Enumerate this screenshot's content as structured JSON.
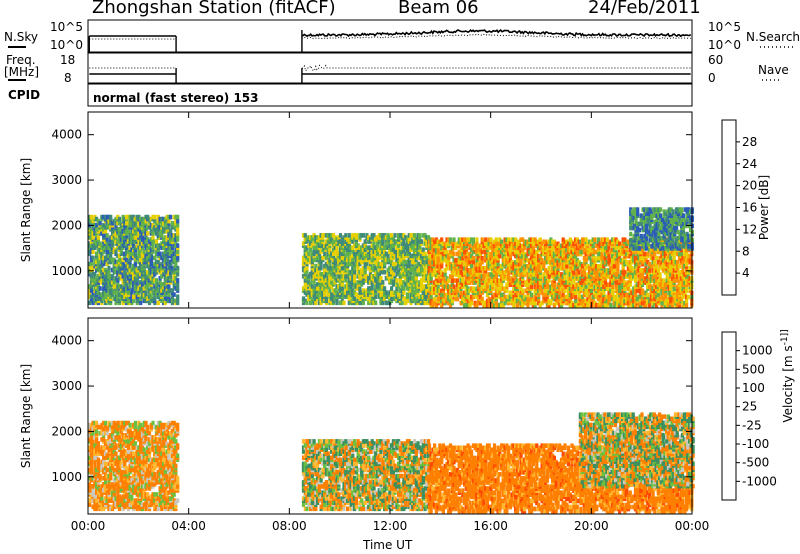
{
  "header": {
    "station": "Zhongshan Station (fitACF)",
    "beam": "Beam 06",
    "date": "24/Feb/2011"
  },
  "top_panels": {
    "nsky_label": "N.Sky",
    "nsearch_label": "N.Search",
    "noise_ticks": [
      "10^5",
      "10^0"
    ],
    "noise_ticks_right": [
      "10^5",
      "10^0"
    ],
    "freq_label": "Freq.",
    "freq_unit": "[MHz]",
    "freq_ticks": [
      "18",
      "8"
    ],
    "nave_label": "Nave",
    "nave_ticks": [
      "60",
      "0"
    ],
    "cpid_label": "CPID",
    "cpid_text": "normal (fast stereo) 153"
  },
  "chart_data": [
    {
      "type": "heatmap",
      "name": "power",
      "ylabel": "Slant Range [km]",
      "xlabel": "",
      "xlim": [
        0,
        24
      ],
      "ylim": [
        180,
        4500
      ],
      "y_ticks": [
        "1000",
        "2000",
        "3000",
        "4000"
      ],
      "x_tick_labels": [
        "00:00",
        "04:00",
        "08:00",
        "12:00",
        "16:00",
        "20:00",
        "00:00"
      ],
      "colorbar": {
        "label": "Power [dB]",
        "ticks": [
          "4",
          "8",
          "12",
          "16",
          "20",
          "24",
          "28"
        ],
        "colors": [
          "#0000ff",
          "#2a5cb8",
          "#3f8a78",
          "#62b24c",
          "#e8d000",
          "#ff9000",
          "#ff5000",
          "#ff0000"
        ]
      },
      "data_gap_hours": [
        3.5,
        8.5
      ],
      "regions": [
        {
          "t": [
            0,
            3.5
          ],
          "r": [
            300,
            2200
          ],
          "level": 12
        },
        {
          "t": [
            8.5,
            13.5
          ],
          "r": [
            300,
            1800
          ],
          "level": 14
        },
        {
          "t": [
            13.5,
            24
          ],
          "r": [
            250,
            1700
          ],
          "level": 20
        },
        {
          "t": [
            21.5,
            24
          ],
          "r": [
            1500,
            2400
          ],
          "level": 10
        }
      ]
    },
    {
      "type": "heatmap",
      "name": "velocity",
      "ylabel": "Slant Range [km]",
      "xlabel": "Time UT",
      "xlim": [
        0,
        24
      ],
      "ylim": [
        180,
        4500
      ],
      "y_ticks": [
        "1000",
        "2000",
        "3000",
        "4000"
      ],
      "x_tick_labels": [
        "00:00",
        "04:00",
        "08:00",
        "12:00",
        "16:00",
        "20:00",
        "00:00"
      ],
      "colorbar": {
        "label": "Velocity [m s^-1]",
        "ticks": [
          "1000",
          "500",
          "100",
          "25",
          "-25",
          "-100",
          "-500",
          "-1000"
        ],
        "colors": [
          "#1a1aff",
          "#2a66c0",
          "#3a9060",
          "#6cc040",
          "#c8c8c0",
          "#ffb830",
          "#ff8000",
          "#ff4800",
          "#ff0000"
        ]
      },
      "data_gap_hours": [
        3.5,
        8.5
      ],
      "regions": [
        {
          "t": [
            0,
            3.5
          ],
          "r": [
            300,
            2200
          ],
          "velocity": -150
        },
        {
          "t": [
            8.5,
            13.5
          ],
          "r": [
            300,
            1800
          ],
          "velocity": 0
        },
        {
          "t": [
            13.5,
            24
          ],
          "r": [
            250,
            1700
          ],
          "velocity": -300
        },
        {
          "t": [
            19.5,
            24
          ],
          "r": [
            800,
            2400
          ],
          "velocity": 0
        }
      ]
    }
  ]
}
